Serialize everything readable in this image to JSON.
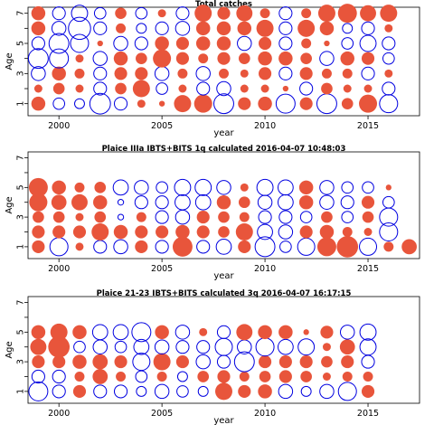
{
  "colors": {
    "positive": "#e8553b",
    "negative": "#0000e0"
  },
  "chart_data": [
    {
      "type": "scatter",
      "subtype": "bubble",
      "title": "Total catches",
      "xlabel": "year",
      "ylabel": "Age",
      "xlim": [
        1998.5,
        2017.5
      ],
      "ylim": [
        0.2,
        7.4
      ],
      "xticks": [
        "2000",
        "2005",
        "2010",
        "2015"
      ],
      "yticks": [
        "1",
        "3",
        "5",
        "7"
      ],
      "x": [
        1999,
        2000,
        2001,
        2002,
        2003,
        2004,
        2005,
        2006,
        2007,
        2008,
        2009,
        2010,
        2011,
        2012,
        2013,
        2014,
        2015,
        2016
      ],
      "ages": [
        1,
        2,
        3,
        4,
        5,
        6,
        7
      ],
      "residuals": [
        [
          0.6,
          -0.4,
          -0.3,
          -1.3,
          -0.5,
          0.2,
          0.1,
          0.9,
          1.0,
          -1.2,
          0.5,
          0.6,
          -1.1,
          0.5,
          -1.2,
          0.4,
          1.0,
          -1.0
        ],
        [
          0.2,
          0.4,
          0.2,
          -0.5,
          0.4,
          0.9,
          -0.4,
          0.2,
          -0.5,
          -0.6,
          0.2,
          0.2,
          0.1,
          -0.5,
          0.4,
          0.2,
          0.2,
          -0.5
        ],
        [
          -0.6,
          0.6,
          0.3,
          -0.5,
          0.5,
          0.5,
          -0.6,
          0.3,
          -0.6,
          0.3,
          0.2,
          0.5,
          -0.5,
          0.5,
          0.3,
          0.3,
          -0.5,
          0.2
        ],
        [
          -1.2,
          -1.1,
          0.2,
          -0.6,
          0.6,
          0.4,
          1.0,
          0.5,
          0.3,
          0.5,
          0.4,
          0.6,
          0.6,
          0.4,
          -0.6,
          0.6,
          0.5,
          -0.4
        ],
        [
          -0.5,
          -1.2,
          -1.0,
          0.1,
          -0.6,
          -0.5,
          0.6,
          0.5,
          0.6,
          0.6,
          -0.6,
          0.5,
          -0.5,
          0.3,
          0.1,
          -0.4,
          -0.8,
          -0.5
        ],
        [
          0.6,
          -0.6,
          -1.5,
          -0.5,
          0.3,
          -0.3,
          -0.5,
          -0.6,
          0.6,
          0.6,
          0.6,
          0.9,
          -0.5,
          0.9,
          0.6,
          -0.3,
          -0.5,
          0.2
        ],
        [
          0.6,
          -0.5,
          -0.8,
          -0.4,
          0.4,
          -0.4,
          0.2,
          -0.5,
          0.9,
          0.5,
          0.8,
          0.3,
          -0.5,
          0.3,
          0.9,
          1.1,
          0.8,
          0.9
        ]
      ]
    },
    {
      "type": "scatter",
      "subtype": "bubble",
      "title": "Plaice IIIa IBTS+BITS 1q calculated 2016-04-07 10:48:03",
      "xlabel": "year",
      "ylabel": "Age",
      "xlim": [
        1998.5,
        2017.5
      ],
      "ylim": [
        0.2,
        7.4
      ],
      "xticks": [
        "2000",
        "2005",
        "2010",
        "2015"
      ],
      "yticks": [
        "1",
        "3",
        "5",
        "7"
      ],
      "x": [
        1999,
        2000,
        2001,
        2002,
        2003,
        2004,
        2005,
        2006,
        2007,
        2008,
        2009,
        2010,
        2011,
        2012,
        2013,
        2014,
        2015,
        2016,
        2017
      ],
      "ages": [
        1,
        2,
        3,
        4,
        5
      ],
      "residuals": [
        [
          0.5,
          -1.0,
          0.2,
          -0.5,
          -0.6,
          0.5,
          -0.5,
          1.2,
          -0.5,
          -0.7,
          0.5,
          -1.2,
          -0.4,
          -0.9,
          1.1,
          1.4,
          -0.9,
          0.3,
          0.7
        ],
        [
          0.5,
          0.5,
          0.5,
          0.9,
          0.6,
          0.5,
          0.5,
          0.6,
          0.5,
          0.4,
          0.9,
          -0.7,
          -0.6,
          0.5,
          0.6,
          0.3,
          0.2,
          -1.0,
          0
        ],
        [
          0.4,
          0.4,
          0.2,
          0.4,
          -0.1,
          0.3,
          -0.5,
          -0.6,
          0.5,
          0.4,
          0.3,
          -0.5,
          -0.5,
          -0.4,
          0.4,
          -0.4,
          0.4,
          -1.0,
          0
        ],
        [
          1.0,
          0.7,
          0.8,
          0.6,
          -0.1,
          -0.5,
          -0.5,
          -0.7,
          -0.7,
          0.6,
          0.4,
          -0.6,
          -0.7,
          0.6,
          -0.6,
          -0.5,
          0.5,
          -0.4,
          0
        ],
        [
          1.1,
          0.6,
          0.3,
          0.4,
          -0.7,
          -0.6,
          -0.4,
          -0.8,
          -0.8,
          -0.6,
          0.2,
          -0.8,
          -0.7,
          0.6,
          -0.6,
          -0.4,
          -0.4,
          0.1,
          0
        ]
      ]
    },
    {
      "type": "scatter",
      "subtype": "bubble",
      "title": "Plaice 21-23 IBTS+BITS calculated 3q 2016-04-07 16:17:15",
      "xlabel": "year",
      "ylabel": "Age",
      "xlim": [
        1998.5,
        2017.5
      ],
      "ylim": [
        0.2,
        7.4
      ],
      "xticks": [
        "2000",
        "2005",
        "2010",
        "2015"
      ],
      "yticks": [
        "1",
        "3",
        "5",
        "7"
      ],
      "x": [
        1999,
        2000,
        2001,
        2002,
        2003,
        2004,
        2005,
        2006,
        2007,
        2008,
        2009,
        2010,
        2011,
        2012,
        2013,
        2014,
        2015
      ],
      "ages": [
        1,
        2,
        3,
        4,
        5
      ],
      "residuals": [
        [
          -1.1,
          -0.5,
          0.5,
          -0.5,
          -0.5,
          -0.3,
          -0.6,
          -0.4,
          -0.3,
          0.9,
          0.5,
          0.6,
          -0.6,
          -0.3,
          -0.6,
          -1.0,
          0.5
        ],
        [
          -0.5,
          -0.5,
          0.3,
          0.7,
          0.3,
          -0.4,
          0.3,
          -0.3,
          0.4,
          0.5,
          0.3,
          0.4,
          0.5,
          0.4,
          0.2,
          0.3,
          0.3
        ],
        [
          0.5,
          0.5,
          0.6,
          0.7,
          0.5,
          -0.9,
          0.9,
          0.5,
          -0.6,
          -0.5,
          -1.2,
          0.5,
          0.5,
          0.5,
          0.4,
          0.5,
          -0.5
        ],
        [
          0.8,
          1.4,
          -0.4,
          -0.6,
          -0.4,
          -0.7,
          -0.6,
          -0.5,
          -0.5,
          -0.9,
          -0.6,
          -1.0,
          -0.7,
          -0.8,
          0.2,
          0.7,
          -0.8
        ],
        [
          0.6,
          0.9,
          0.6,
          -0.7,
          -0.7,
          -1.1,
          0.6,
          -0.6,
          0.2,
          -0.5,
          0.8,
          0.6,
          0.6,
          0.1,
          0.5,
          -0.6,
          -0.8
        ]
      ]
    }
  ]
}
